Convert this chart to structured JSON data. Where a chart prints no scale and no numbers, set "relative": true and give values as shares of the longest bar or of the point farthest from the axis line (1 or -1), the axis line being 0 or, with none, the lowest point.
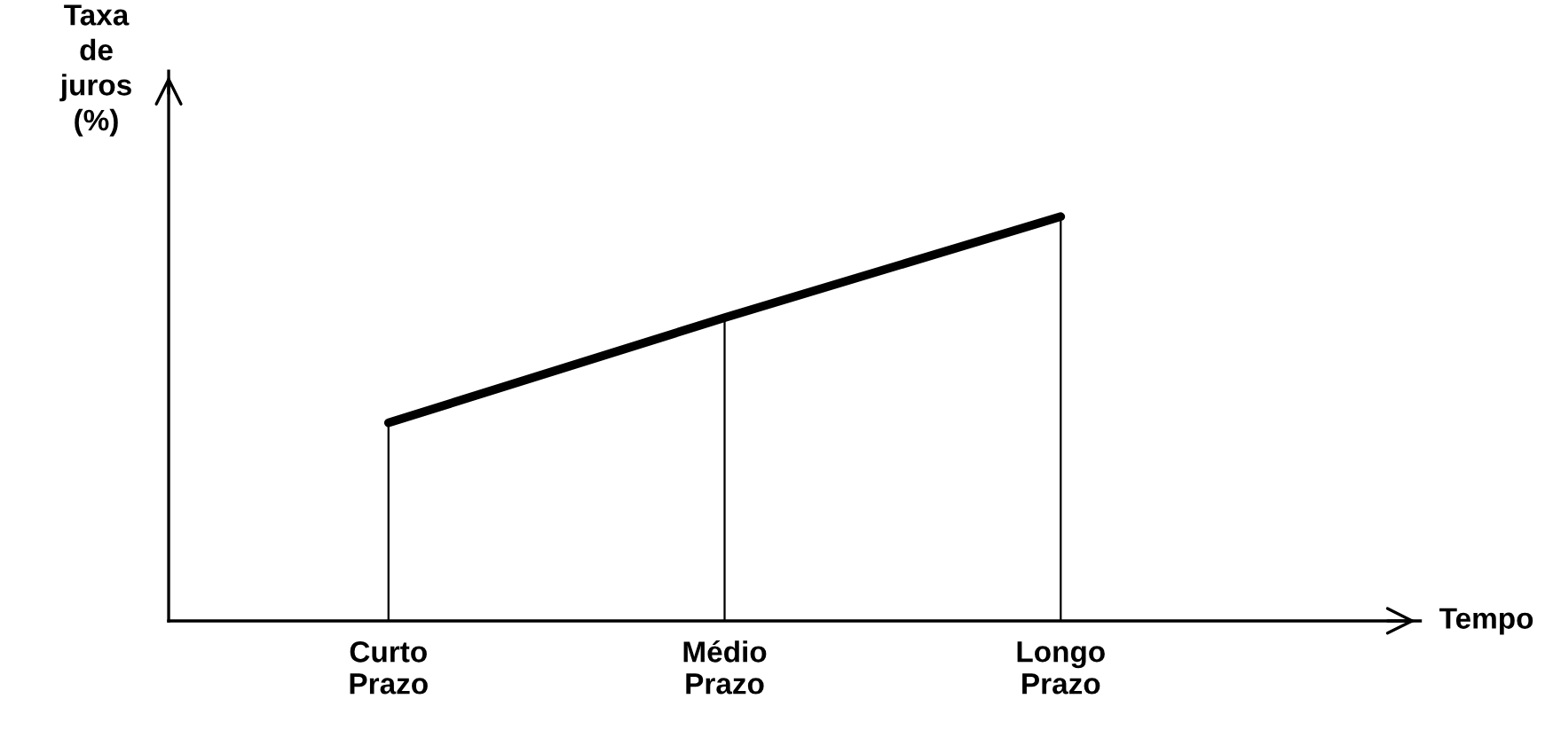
{
  "chart_data": {
    "type": "line",
    "relative": true,
    "xlabel": "Tempo",
    "ylabel": "Taxa\nde\njuros\n(%)",
    "categories": [
      "Curto\nPrazo",
      "Médio\nPrazo",
      "Longo\nPrazo"
    ],
    "series": [
      {
        "color": "#000000",
        "values": [
          0.49,
          0.75,
          1.0
        ]
      },
      {
        "type": "bar",
        "color": "#000000",
        "values": [
          0.49,
          0.75,
          1.0
        ]
      }
    ],
    "marker": "none",
    "grid": false,
    "legend": false
  }
}
